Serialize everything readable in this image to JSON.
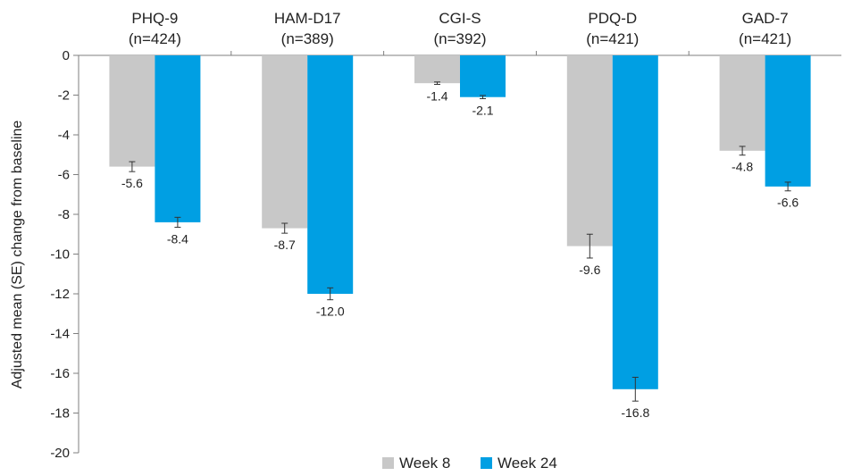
{
  "chart_data": {
    "type": "bar",
    "categories": [
      "PHQ-9",
      "HAM-D17",
      "CGI-S",
      "PDQ-D",
      "GAD-7"
    ],
    "category_n": [
      "(n=424)",
      "(n=389)",
      "(n=392)",
      "(n=421)",
      "(n=421)"
    ],
    "series": [
      {
        "name": "Week 8",
        "values": [
          -5.6,
          -8.7,
          -1.4,
          -9.6,
          -4.8
        ],
        "se": [
          0.25,
          0.25,
          0.06,
          0.6,
          0.22
        ],
        "color": "#c8c8c8"
      },
      {
        "name": "Week 24",
        "values": [
          -8.4,
          -12.0,
          -2.1,
          -16.8,
          -6.6
        ],
        "se": [
          0.25,
          0.3,
          0.08,
          0.6,
          0.22
        ],
        "color": "#009fe3"
      }
    ],
    "value_labels": [
      [
        "-5.6",
        "-8.7",
        "-1.4",
        "-9.6",
        "-4.8"
      ],
      [
        "-8.4",
        "-12.0",
        "-2.1",
        "-16.8",
        "-6.6"
      ]
    ],
    "ylabel": "Adjusted mean (SE) change from baseline",
    "xlabel": "",
    "ylim": [
      -20,
      0
    ],
    "yticks": [
      0,
      -2,
      -4,
      -6,
      -8,
      -10,
      -12,
      -14,
      -16,
      -18,
      -20
    ],
    "ytick_labels": [
      "0",
      "-2",
      "-4",
      "-6",
      "-8",
      "-10",
      "-12",
      "-14",
      "-16",
      "-18",
      "-20"
    ],
    "grid": false,
    "legend_position": "bottom-center",
    "category_labels_position": "top"
  }
}
